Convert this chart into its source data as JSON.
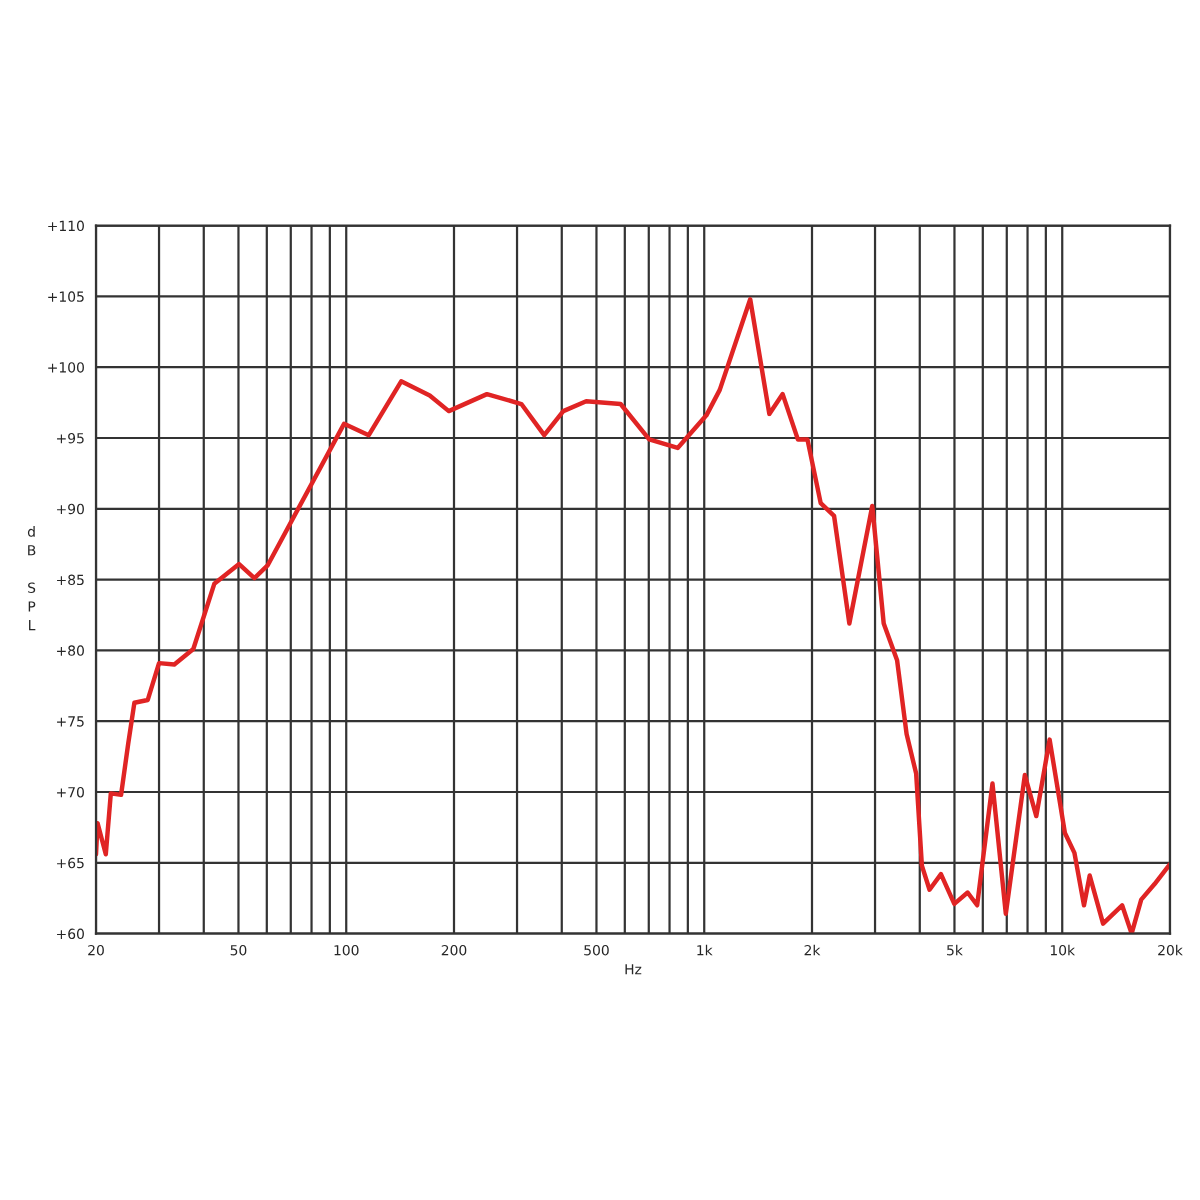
{
  "chart_data": {
    "type": "line",
    "xlabel": "Hz",
    "ylabel": "dB SPL",
    "log": "x",
    "grid": true,
    "legend": false,
    "marker": "none",
    "line_style": "solid",
    "xlim": [
      20,
      20000
    ],
    "ylim": [
      60,
      110
    ],
    "xticks": [
      20,
      {
        "value": 30,
        "label": null
      },
      {
        "value": 40,
        "label": null
      },
      50,
      {
        "value": 60,
        "label": null
      },
      {
        "value": 70,
        "label": null
      },
      {
        "value": 80,
        "label": null
      },
      {
        "value": 90,
        "label": null
      },
      100,
      200,
      {
        "value": 300,
        "label": null
      },
      {
        "value": 400,
        "label": null
      },
      500,
      {
        "value": 600,
        "label": null
      },
      {
        "value": 700,
        "label": null
      },
      {
        "value": 800,
        "label": null
      },
      {
        "value": 900,
        "label": null
      },
      {
        "value": 1000,
        "label": "1k"
      },
      {
        "value": 2000,
        "label": "2k"
      },
      {
        "value": 3000,
        "label": null
      },
      {
        "value": 4000,
        "label": null
      },
      {
        "value": 5000,
        "label": "5k"
      },
      {
        "value": 6000,
        "label": null
      },
      {
        "value": 7000,
        "label": null
      },
      {
        "value": 8000,
        "label": null
      },
      {
        "value": 9000,
        "label": null
      },
      {
        "value": 10000,
        "label": "10k"
      },
      {
        "value": 20000,
        "label": "20k"
      }
    ],
    "yticks": [
      {
        "value": 60,
        "label": "+60"
      },
      {
        "value": 65,
        "label": "+65"
      },
      {
        "value": 70,
        "label": "+70"
      },
      {
        "value": 75,
        "label": "+75"
      },
      {
        "value": 80,
        "label": "+80"
      },
      {
        "value": 85,
        "label": "+85"
      },
      {
        "value": 90,
        "label": "+90"
      },
      {
        "value": 95,
        "label": "+95"
      },
      {
        "value": 100,
        "label": "+100"
      },
      {
        "value": 105,
        "label": "+105"
      },
      {
        "value": 110,
        "label": "+110"
      }
    ],
    "series": [
      {
        "color": "#e02424",
        "x": [
          20,
          20.2,
          21.3,
          22.0,
          23.5,
          24.6,
          25.6,
          27.9,
          30.0,
          33.1,
          37.4,
          42.8,
          50.2,
          55.4,
          60.3,
          98.6,
          115.6,
          142.4,
          171.1,
          193.4,
          247.2,
          308.5,
          357.3,
          404,
          468,
          584,
          702,
          843,
          1014,
          1105,
          1344,
          1520,
          1656,
          1826,
          1942,
          2115,
          2305,
          2543,
          2947,
          3172,
          3457,
          3675,
          3908,
          4055,
          4259,
          4584,
          4995,
          5442,
          5786,
          6385,
          6957,
          7863,
          8463,
          9221,
          10175,
          10816,
          11502,
          11934,
          13004,
          14700,
          15626,
          16620,
          18110,
          20000
        ],
        "values": [
          65.6,
          67.8,
          65.6,
          69.9,
          69.8,
          73.4,
          76.3,
          76.5,
          79.1,
          79.0,
          80.1,
          84.7,
          86.1,
          85.1,
          86.0,
          96.0,
          95.2,
          99.0,
          98.0,
          96.9,
          98.1,
          97.4,
          95.2,
          96.9,
          97.6,
          97.4,
          94.9,
          94.3,
          96.6,
          98.4,
          104.8,
          96.7,
          98.1,
          94.9,
          94.9,
          90.4,
          89.5,
          81.9,
          90.2,
          81.9,
          79.3,
          74.1,
          71.3,
          64.8,
          63.1,
          64.2,
          62.1,
          62.9,
          62.0,
          70.6,
          61.4,
          71.2,
          68.3,
          73.7,
          67.1,
          65.7,
          62.0,
          64.1,
          60.7,
          62.0,
          60.0,
          62.4,
          63.5,
          64.9
        ]
      }
    ]
  }
}
